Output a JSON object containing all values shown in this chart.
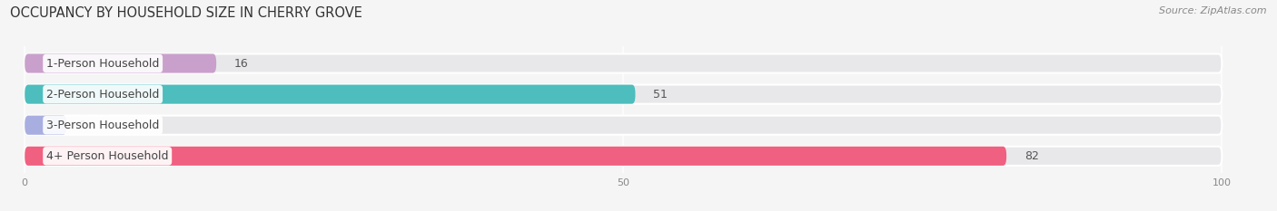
{
  "title": "OCCUPANCY BY HOUSEHOLD SIZE IN CHERRY GROVE",
  "source": "Source: ZipAtlas.com",
  "categories": [
    "1-Person Household",
    "2-Person Household",
    "3-Person Household",
    "4+ Person Household"
  ],
  "values": [
    16,
    51,
    0,
    82
  ],
  "bar_colors": [
    "#c9a0cc",
    "#4dbdbd",
    "#a8aee0",
    "#f06080"
  ],
  "bar_bg_color": "#e8e8ea",
  "xlim": [
    0,
    100
  ],
  "xticks": [
    0,
    50,
    100
  ],
  "fig_bg_color": "#f5f5f5",
  "title_fontsize": 10.5,
  "source_fontsize": 8,
  "bar_label_fontsize": 9,
  "category_fontsize": 9,
  "bar_height": 0.62,
  "bar_gap": 1.0
}
